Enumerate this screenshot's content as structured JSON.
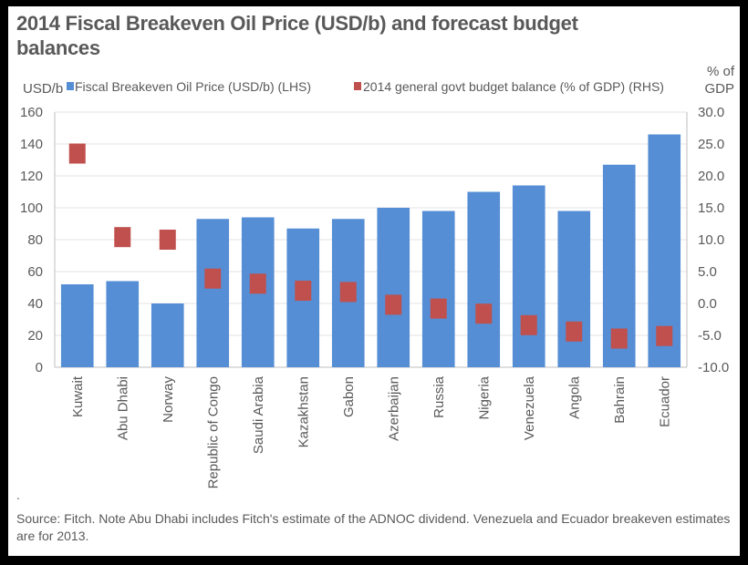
{
  "chart_data": {
    "type": "bar",
    "title": "2014 Fiscal Breakeven Oil Price (USD/b) and  forecast budget balances",
    "categories": [
      "Kuwait",
      "Abu Dhabi",
      "Norway",
      "Republic of Congo",
      "Saudi Arabia",
      "Kazakhstan",
      "Gabon",
      "Azerbaijan",
      "Russia",
      "Nigeria",
      "Venezuela",
      "Angola",
      "Bahrain",
      "Ecuador"
    ],
    "series": [
      {
        "name": "Fiscal Breakeven Oil Price (USD/b) (LHS)",
        "type": "bar",
        "axis": "left",
        "color": "#558ED5",
        "values": [
          52,
          54,
          40,
          93,
          94,
          87,
          93,
          100,
          98,
          110,
          114,
          98,
          127,
          146
        ]
      },
      {
        "name": "2014 general govt budget balance (% of GDP) (RHS)",
        "type": "scatter",
        "marker": "square",
        "axis": "right",
        "color": "#C0504D",
        "values": [
          23.5,
          10.4,
          10.0,
          3.9,
          3.1,
          2.0,
          1.8,
          -0.2,
          -0.8,
          -1.6,
          -3.4,
          -4.4,
          -5.5,
          -5.1
        ]
      }
    ],
    "ylabel": "USD/b",
    "ylim": [
      0,
      160
    ],
    "yticks": [
      0,
      20,
      40,
      60,
      80,
      100,
      120,
      140,
      160
    ],
    "y2label": "% of GDP",
    "y2lim": [
      -10,
      30
    ],
    "y2ticks": [
      "-10.0",
      "-5.0",
      "0.0",
      "5.0",
      "10.0",
      "15.0",
      "20.0",
      "25.0",
      "30.0"
    ],
    "grid": true,
    "legend": "top"
  },
  "dot": ".",
  "footnote": "Source: Fitch. Note Abu Dhabi includes Fitch's estimate of  the ADNOC dividend. Venezuela  and Ecuador breakeven estimates are for 2013."
}
